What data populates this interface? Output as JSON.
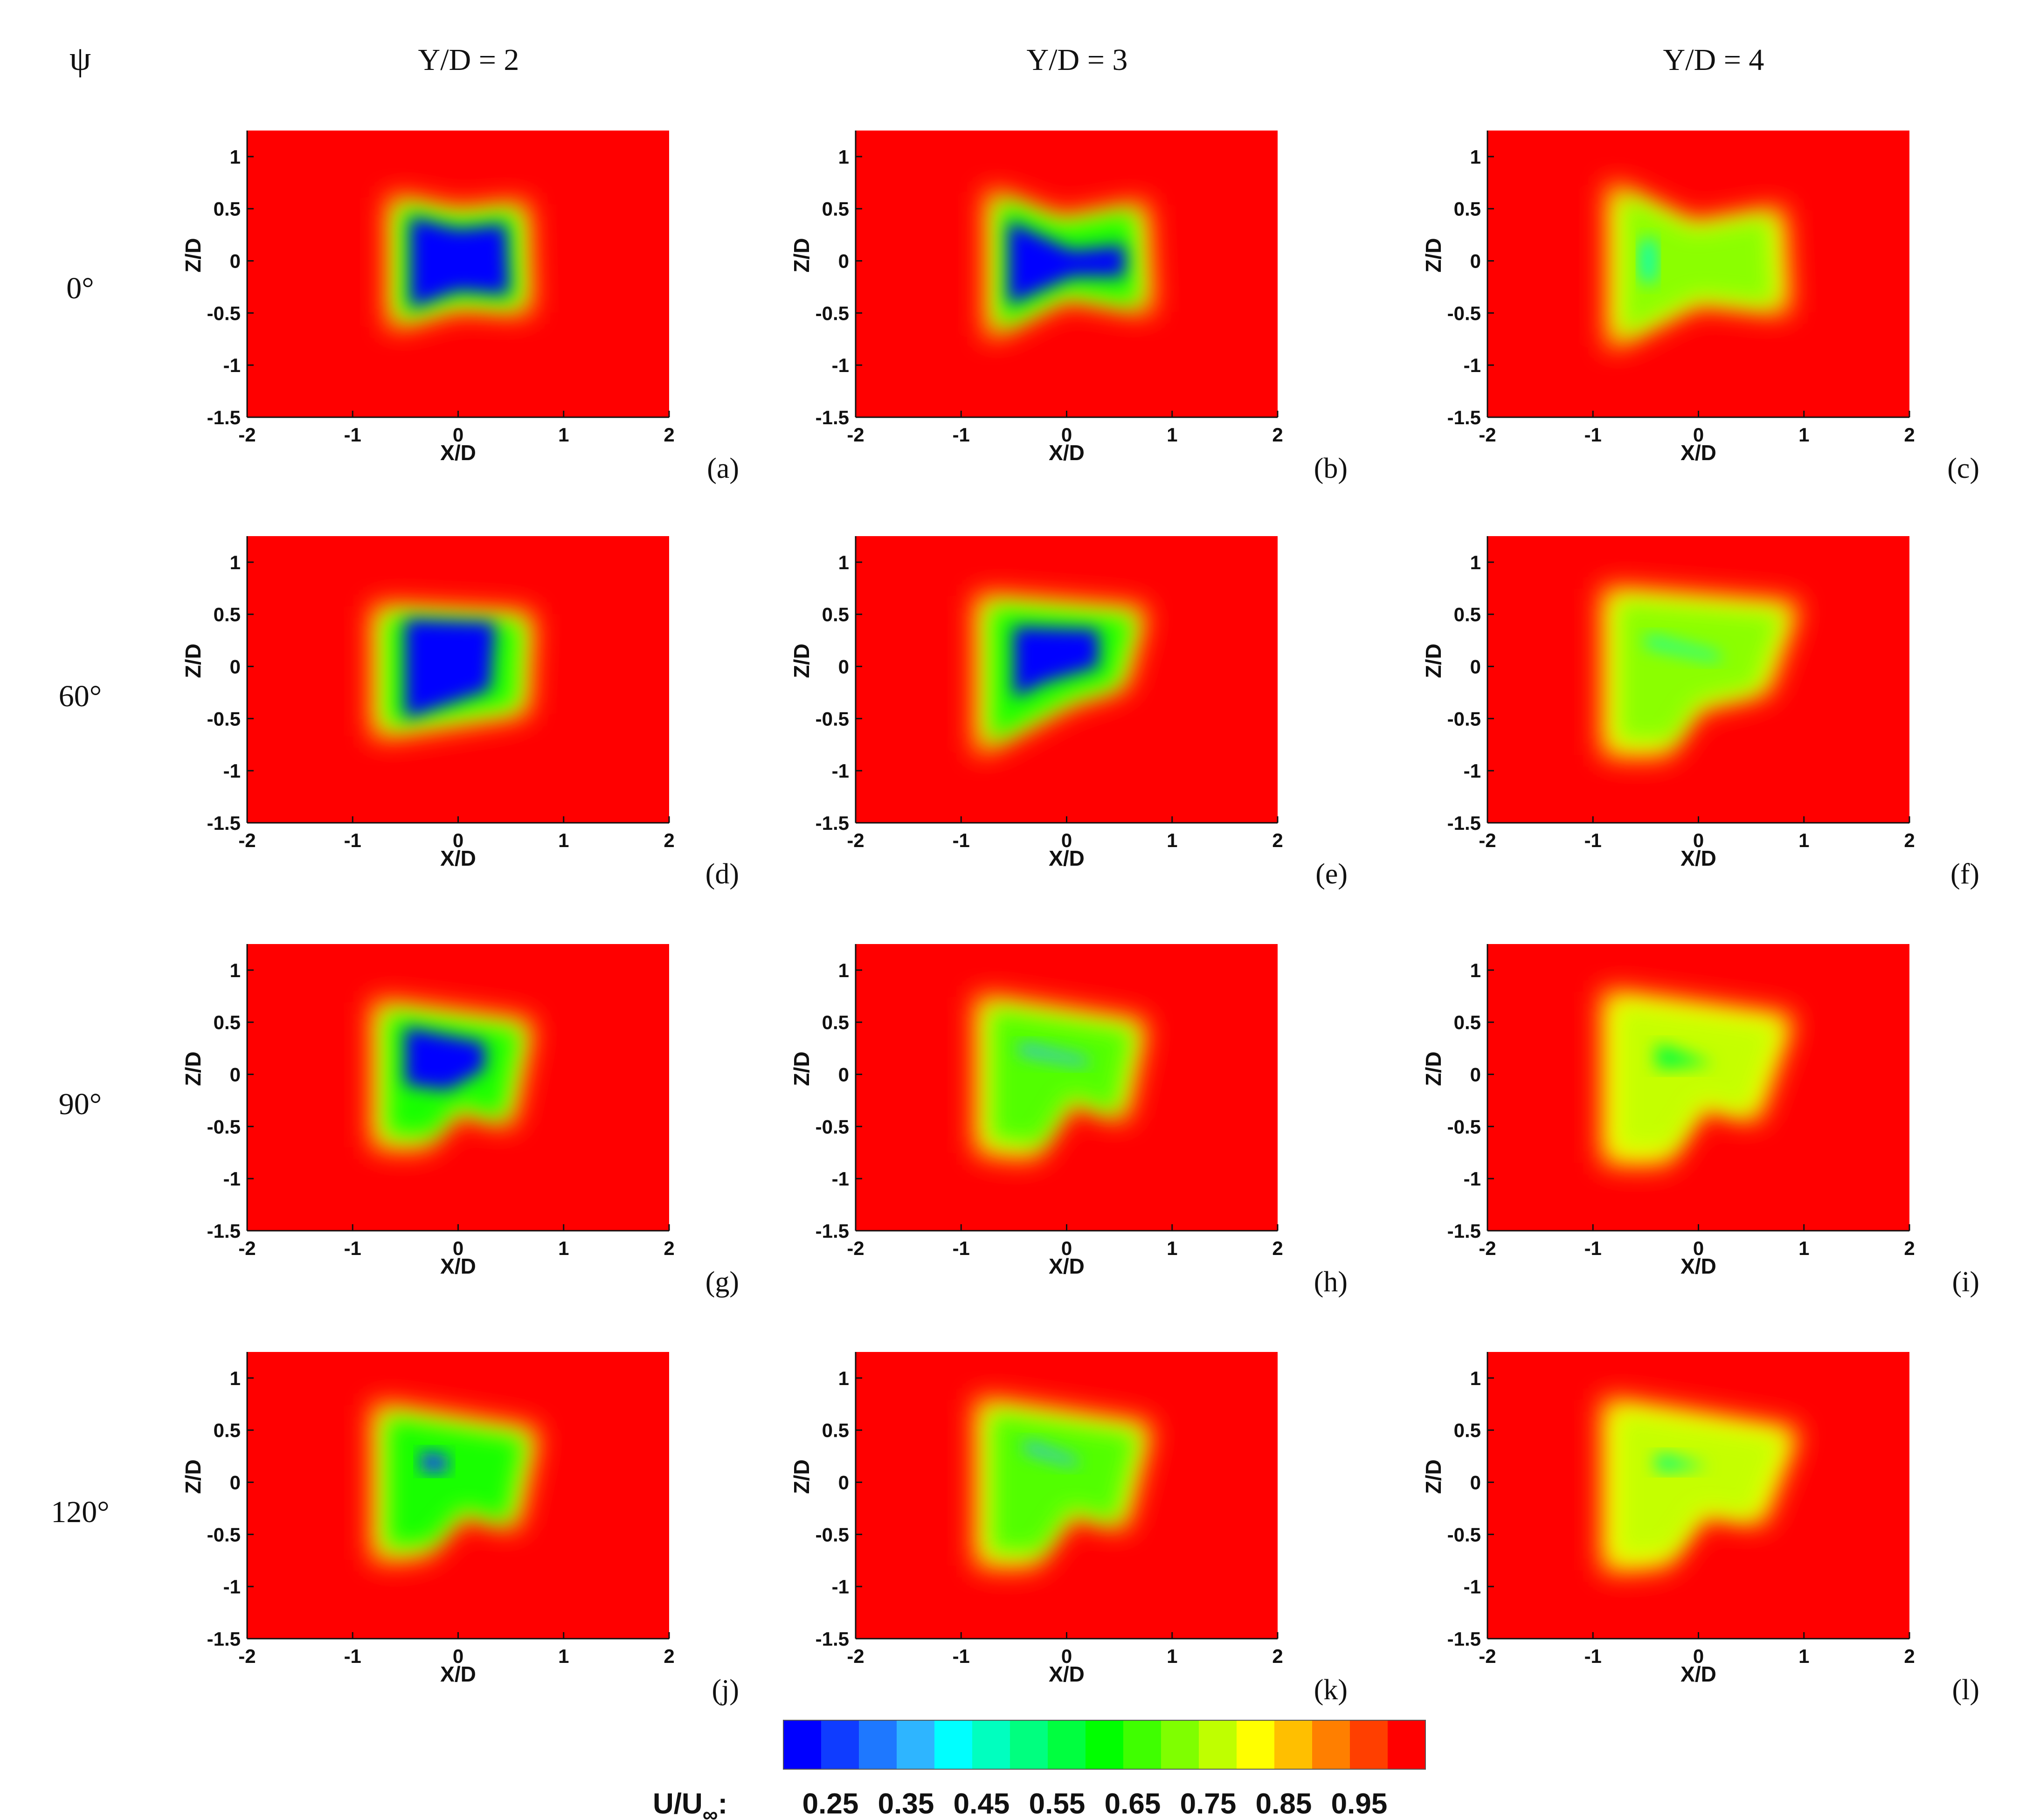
{
  "psi_header": "ψ",
  "columns": [
    {
      "label": "Y/D = 2"
    },
    {
      "label": "Y/D = 3"
    },
    {
      "label": "Y/D = 4"
    }
  ],
  "rows": [
    {
      "label": "0°"
    },
    {
      "label": "60°"
    },
    {
      "label": "90°"
    },
    {
      "label": "120°"
    }
  ],
  "colors": {
    "background": "#ff0000",
    "scale": [
      "#0000ff",
      "#0f3cff",
      "#1e78ff",
      "#2eb5ff",
      "#00ffff",
      "#00ffbf",
      "#00ff7f",
      "#00ff3f",
      "#00ff00",
      "#3fff00",
      "#7fff00",
      "#bfff00",
      "#ffff00",
      "#ffbf00",
      "#ff7f00",
      "#ff3f00",
      "#ff0000"
    ]
  },
  "colorbar": {
    "label_main": "U/U",
    "label_sub": "∞",
    "label_colon": ":",
    "ticks": [
      "0.25",
      "0.35",
      "0.45",
      "0.55",
      "0.65",
      "0.75",
      "0.85",
      "0.95"
    ],
    "levels": [
      0.2,
      0.25,
      0.3,
      0.35,
      0.4,
      0.45,
      0.5,
      0.55,
      0.6,
      0.65,
      0.7,
      0.75,
      0.8,
      0.85,
      0.9,
      0.95,
      1.0
    ]
  },
  "chart_data": {
    "type": "heatmap",
    "xlabel": "X/D",
    "ylabel": "Z/D",
    "xlim": [
      -2,
      2
    ],
    "ylim": [
      -1.5,
      1.25
    ],
    "xticks": [
      "-2",
      "-1",
      "0",
      "1",
      "2"
    ],
    "yticks": [
      "1",
      "0.5",
      "0",
      "-0.5",
      "-1",
      "-1.5"
    ],
    "panels": [
      {
        "label": "(a)",
        "psi": "0°",
        "y_d": "Y/D = 2",
        "min_value": 0.2,
        "wake": [
          [
            -0.65,
            0.62
          ],
          [
            0.0,
            0.48
          ],
          [
            0.65,
            0.55
          ],
          [
            0.68,
            -0.5
          ],
          [
            0.0,
            -0.45
          ],
          [
            -0.65,
            -0.65
          ]
        ],
        "core": [
          [
            -0.45,
            0.42
          ],
          [
            0.0,
            0.3
          ],
          [
            0.45,
            0.35
          ],
          [
            0.48,
            -0.32
          ],
          [
            0.0,
            -0.28
          ],
          [
            -0.45,
            -0.45
          ]
        ]
      },
      {
        "label": "(b)",
        "psi": "0°",
        "y_d": "Y/D = 3",
        "min_value": 0.2,
        "wake": [
          [
            -0.75,
            0.68
          ],
          [
            -0.05,
            0.4
          ],
          [
            0.75,
            0.55
          ],
          [
            0.8,
            -0.5
          ],
          [
            0.0,
            -0.35
          ],
          [
            -0.75,
            -0.75
          ]
        ],
        "core": [
          [
            -0.55,
            0.38
          ],
          [
            0.05,
            0.1
          ],
          [
            0.55,
            0.15
          ],
          [
            0.55,
            -0.15
          ],
          [
            0.05,
            -0.15
          ],
          [
            -0.55,
            -0.42
          ]
        ]
      },
      {
        "label": "(c)",
        "psi": "0°",
        "y_d": "Y/D = 4",
        "min_value": 0.45,
        "wake": [
          [
            -0.85,
            0.75
          ],
          [
            -0.05,
            0.35
          ],
          [
            0.8,
            0.5
          ],
          [
            0.85,
            -0.5
          ],
          [
            0.0,
            -0.4
          ],
          [
            -0.85,
            -0.85
          ]
        ],
        "core": [
          [
            -0.55,
            0.2
          ],
          [
            -0.4,
            0.2
          ],
          [
            -0.4,
            -0.2
          ],
          [
            -0.55,
            -0.2
          ]
        ]
      },
      {
        "label": "(d)",
        "psi": "60°",
        "y_d": "Y/D = 2",
        "min_value": 0.2,
        "wake": [
          [
            -0.8,
            0.58
          ],
          [
            0.7,
            0.5
          ],
          [
            0.65,
            -0.45
          ],
          [
            -0.8,
            -0.68
          ]
        ],
        "core": [
          [
            -0.5,
            0.45
          ],
          [
            0.35,
            0.42
          ],
          [
            0.3,
            -0.22
          ],
          [
            -0.5,
            -0.5
          ]
        ]
      },
      {
        "label": "(e)",
        "psi": "60°",
        "y_d": "Y/D = 3",
        "min_value": 0.2,
        "wake": [
          [
            -0.85,
            0.68
          ],
          [
            0.75,
            0.55
          ],
          [
            0.55,
            -0.2
          ],
          [
            0.05,
            -0.35
          ],
          [
            -0.85,
            -0.85
          ]
        ],
        "core": [
          [
            -0.5,
            0.38
          ],
          [
            0.3,
            0.35
          ],
          [
            0.3,
            0.0
          ],
          [
            -0.2,
            -0.15
          ],
          [
            -0.5,
            -0.3
          ]
        ]
      },
      {
        "label": "(f)",
        "psi": "60°",
        "y_d": "Y/D = 4",
        "min_value": 0.45,
        "wake": [
          [
            -0.9,
            0.75
          ],
          [
            0.95,
            0.6
          ],
          [
            0.65,
            -0.25
          ],
          [
            0.0,
            -0.4
          ],
          [
            -0.3,
            -0.85
          ],
          [
            -0.9,
            -0.85
          ]
        ],
        "core": [
          [
            -0.5,
            0.3
          ],
          [
            0.2,
            0.12
          ],
          [
            0.2,
            0.05
          ],
          [
            -0.5,
            0.2
          ]
        ]
      },
      {
        "label": "(g)",
        "psi": "90°",
        "y_d": "Y/D = 2",
        "min_value": 0.2,
        "wake": [
          [
            -0.8,
            0.7
          ],
          [
            0.7,
            0.5
          ],
          [
            0.5,
            -0.5
          ],
          [
            0.0,
            -0.35
          ],
          [
            -0.3,
            -0.7
          ],
          [
            -0.8,
            -0.7
          ]
        ],
        "core": [
          [
            -0.5,
            0.45
          ],
          [
            0.25,
            0.3
          ],
          [
            0.25,
            0.05
          ],
          [
            -0.1,
            -0.15
          ],
          [
            -0.5,
            -0.1
          ]
        ]
      },
      {
        "label": "(h)",
        "psi": "90°",
        "y_d": "Y/D = 3",
        "min_value": 0.35,
        "wake": [
          [
            -0.85,
            0.75
          ],
          [
            0.75,
            0.5
          ],
          [
            0.55,
            -0.45
          ],
          [
            0.05,
            -0.25
          ],
          [
            -0.3,
            -0.8
          ],
          [
            -0.85,
            -0.75
          ]
        ],
        "core": [
          [
            -0.45,
            0.3
          ],
          [
            0.2,
            0.15
          ],
          [
            0.2,
            0.08
          ],
          [
            -0.45,
            0.2
          ]
        ]
      },
      {
        "label": "(i)",
        "psi": "90°",
        "y_d": "Y/D = 4",
        "min_value": 0.55,
        "wake": [
          [
            -0.9,
            0.8
          ],
          [
            0.9,
            0.55
          ],
          [
            0.55,
            -0.45
          ],
          [
            0.05,
            -0.3
          ],
          [
            -0.3,
            -0.85
          ],
          [
            -0.9,
            -0.85
          ]
        ],
        "core": [
          [
            -0.4,
            0.3
          ],
          [
            0.15,
            0.1
          ],
          [
            -0.4,
            0.05
          ]
        ]
      },
      {
        "label": "(j)",
        "psi": "120°",
        "y_d": "Y/D = 2",
        "min_value": 0.25,
        "wake": [
          [
            -0.8,
            0.75
          ],
          [
            0.75,
            0.5
          ],
          [
            0.55,
            -0.45
          ],
          [
            0.05,
            -0.3
          ],
          [
            -0.3,
            -0.7
          ],
          [
            -0.8,
            -0.75
          ]
        ],
        "core": [
          [
            -0.35,
            0.3
          ],
          [
            -0.1,
            0.25
          ],
          [
            -0.1,
            0.1
          ],
          [
            -0.35,
            0.1
          ]
        ]
      },
      {
        "label": "(k)",
        "psi": "120°",
        "y_d": "Y/D = 3",
        "min_value": 0.35,
        "wake": [
          [
            -0.85,
            0.8
          ],
          [
            0.8,
            0.55
          ],
          [
            0.55,
            -0.45
          ],
          [
            0.05,
            -0.3
          ],
          [
            -0.3,
            -0.8
          ],
          [
            -0.85,
            -0.8
          ]
        ],
        "core": [
          [
            -0.4,
            0.4
          ],
          [
            0.1,
            0.22
          ],
          [
            0.1,
            0.15
          ],
          [
            -0.4,
            0.3
          ]
        ]
      },
      {
        "label": "(l)",
        "psi": "120°",
        "y_d": "Y/D = 4",
        "min_value": 0.5,
        "wake": [
          [
            -0.9,
            0.8
          ],
          [
            0.95,
            0.5
          ],
          [
            0.6,
            -0.4
          ],
          [
            0.05,
            -0.3
          ],
          [
            -0.3,
            -0.8
          ],
          [
            -0.9,
            -0.85
          ]
        ],
        "core": [
          [
            -0.4,
            0.28
          ],
          [
            0.1,
            0.15
          ],
          [
            -0.4,
            0.1
          ]
        ]
      }
    ]
  }
}
